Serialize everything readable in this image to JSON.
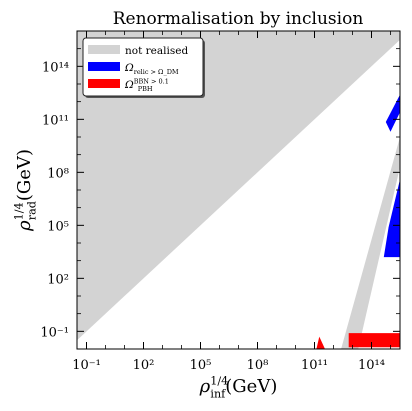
{
  "chart_data": {
    "type": "area",
    "title": "Renormalisation by inclusion",
    "xlabel": "ρ_inf^{1/4}(GeV)",
    "ylabel": "ρ_rad^{1/4}(GeV)",
    "x_scale": "log",
    "y_scale": "log",
    "xlim_log10": [
      -1.5,
      15.5
    ],
    "ylim_log10": [
      -2.0,
      16.0
    ],
    "x_ticks": [
      {
        "log10": -1,
        "label": "10⁻¹"
      },
      {
        "log10": 2,
        "label": "10²"
      },
      {
        "log10": 5,
        "label": "10⁵"
      },
      {
        "log10": 8,
        "label": "10⁸"
      },
      {
        "log10": 11,
        "label": "10¹¹"
      },
      {
        "log10": 14,
        "label": "10¹⁴"
      }
    ],
    "y_ticks": [
      {
        "log10": -1,
        "label": "10⁻¹"
      },
      {
        "log10": 2,
        "label": "10²"
      },
      {
        "log10": 5,
        "label": "10⁵"
      },
      {
        "log10": 8,
        "label": "10⁸"
      },
      {
        "log10": 11,
        "label": "10¹¹"
      },
      {
        "log10": 14,
        "label": "10¹⁴"
      }
    ],
    "legend_position": "top-left",
    "grid": false,
    "series": [
      {
        "name": "not realised",
        "color": "#d3d3d3",
        "regions_log10": [
          [
            [
              -1.5,
              -1.5
            ],
            [
              15.5,
              15.5
            ],
            [
              15.5,
              16.0
            ],
            [
              -1.5,
              16.0
            ]
          ],
          [
            [
              12.4,
              -2.0
            ],
            [
              13.3,
              -2.0
            ],
            [
              15.5,
              8.3
            ],
            [
              15.5,
              10.0
            ]
          ]
        ]
      },
      {
        "name": "Ω_relic > Ω_DM",
        "color": "#0000ff",
        "regions_log10": [
          [
            [
              14.75,
              10.85
            ],
            [
              15.5,
              12.4
            ],
            [
              15.5,
              11.4
            ],
            [
              15.0,
              10.3
            ]
          ],
          [
            [
              14.9,
              4.9
            ],
            [
              15.5,
              7.6
            ],
            [
              15.5,
              3.2
            ],
            [
              14.65,
              3.2
            ]
          ]
        ]
      },
      {
        "name": "Ω_PBH^BBN > 0.1",
        "color": "#ff0000",
        "regions_log10": [
          [
            [
              12.8,
              -1.1
            ],
            [
              15.5,
              -1.1
            ],
            [
              15.5,
              -1.9
            ],
            [
              12.8,
              -1.9
            ]
          ],
          [
            [
              11.1,
              -2.0
            ],
            [
              11.55,
              -2.0
            ],
            [
              11.25,
              -1.3
            ]
          ]
        ]
      }
    ],
    "legend": [
      {
        "label": "not realised",
        "color": "#d3d3d3"
      },
      {
        "label": "Ω_relic > Ω_DM",
        "color": "#0000ff"
      },
      {
        "label": "Ω_PBH^BBN > 0.1",
        "color": "#ff0000"
      }
    ]
  }
}
